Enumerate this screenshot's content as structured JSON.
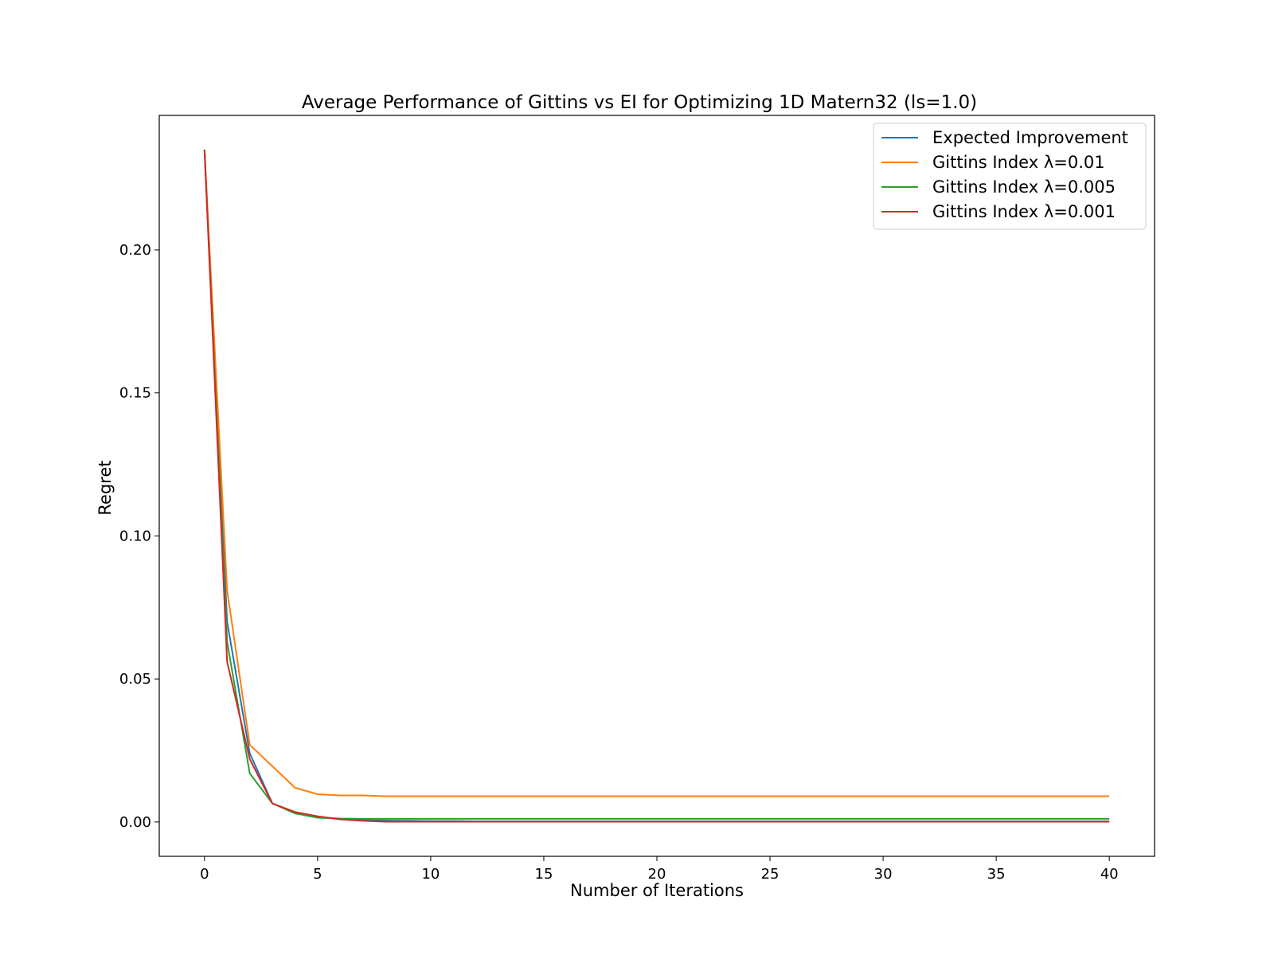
{
  "chart_data": {
    "type": "line",
    "title": "Average Performance of Gittins vs EI for Optimizing 1D Matern32 (ls=1.0)",
    "xlabel": "Number of Iterations",
    "ylabel": "Regret",
    "xlim": [
      -2,
      42
    ],
    "ylim": [
      -0.012,
      0.247
    ],
    "xticks": [
      0,
      5,
      10,
      15,
      20,
      25,
      30,
      35,
      40
    ],
    "yticks": [
      0.0,
      0.05,
      0.1,
      0.15,
      0.2
    ],
    "ytick_labels": [
      "0.00",
      "0.05",
      "0.10",
      "0.15",
      "0.20"
    ],
    "grid": false,
    "legend_position": "top-right",
    "x": [
      0,
      1,
      2,
      3,
      4,
      5,
      6,
      7,
      8,
      9,
      10,
      11,
      12,
      13,
      14,
      15,
      16,
      17,
      18,
      19,
      20,
      21,
      22,
      23,
      24,
      25,
      26,
      27,
      28,
      29,
      30,
      31,
      32,
      33,
      34,
      35,
      36,
      37,
      38,
      39,
      40
    ],
    "series": [
      {
        "name": "Expected Improvement",
        "color": "#1f77b4",
        "values": [
          0.235,
          0.07,
          0.024,
          0.0065,
          0.0032,
          0.0018,
          0.0011,
          0.0007,
          0.0005,
          0.0004,
          0.0003,
          0.0003,
          0.0002,
          0.0002,
          0.0002,
          0.0002,
          0.0002,
          0.0002,
          0.0002,
          0.0002,
          0.0002,
          0.0002,
          0.0002,
          0.0002,
          0.0002,
          0.0002,
          0.0002,
          0.0002,
          0.0002,
          0.0002,
          0.0002,
          0.0002,
          0.0002,
          0.0002,
          0.0002,
          0.0002,
          0.0002,
          0.0002,
          0.0002,
          0.0002,
          0.0002
        ]
      },
      {
        "name": "Gittins Index λ=0.01",
        "color": "#ff7f0e",
        "values": [
          0.235,
          0.081,
          0.027,
          0.0195,
          0.012,
          0.0097,
          0.0093,
          0.0093,
          0.009,
          0.009,
          0.009,
          0.009,
          0.009,
          0.009,
          0.009,
          0.009,
          0.009,
          0.009,
          0.009,
          0.009,
          0.009,
          0.009,
          0.009,
          0.009,
          0.009,
          0.009,
          0.009,
          0.009,
          0.009,
          0.009,
          0.009,
          0.009,
          0.009,
          0.009,
          0.009,
          0.009,
          0.009,
          0.009,
          0.009,
          0.009,
          0.009
        ]
      },
      {
        "name": "Gittins Index λ=0.005",
        "color": "#2ca02c",
        "values": [
          0.235,
          0.063,
          0.017,
          0.0065,
          0.003,
          0.0015,
          0.0012,
          0.0011,
          0.0011,
          0.0011,
          0.0011,
          0.0011,
          0.0011,
          0.0011,
          0.0011,
          0.0011,
          0.0011,
          0.0011,
          0.0011,
          0.0011,
          0.0011,
          0.0011,
          0.0011,
          0.0011,
          0.0011,
          0.0011,
          0.0011,
          0.0011,
          0.0011,
          0.0011,
          0.0011,
          0.0011,
          0.0011,
          0.0011,
          0.0011,
          0.0011,
          0.0011,
          0.0011,
          0.0011,
          0.0011,
          0.0011
        ]
      },
      {
        "name": "Gittins Index λ=0.001",
        "color": "#d62728",
        "values": [
          0.235,
          0.056,
          0.022,
          0.0065,
          0.0035,
          0.002,
          0.0009,
          0.0004,
          0.0001,
          0.0001,
          0.0001,
          0.0001,
          0.0001,
          0.0001,
          0.0001,
          0.0001,
          0.0001,
          0.0001,
          0.0001,
          0.0001,
          0.0001,
          0.0001,
          0.0001,
          0.0001,
          0.0001,
          0.0001,
          0.0001,
          0.0001,
          0.0001,
          0.0001,
          0.0001,
          0.0001,
          0.0001,
          0.0001,
          0.0001,
          0.0001,
          0.0001,
          0.0001,
          0.0001,
          0.0001,
          0.0001
        ]
      }
    ]
  }
}
